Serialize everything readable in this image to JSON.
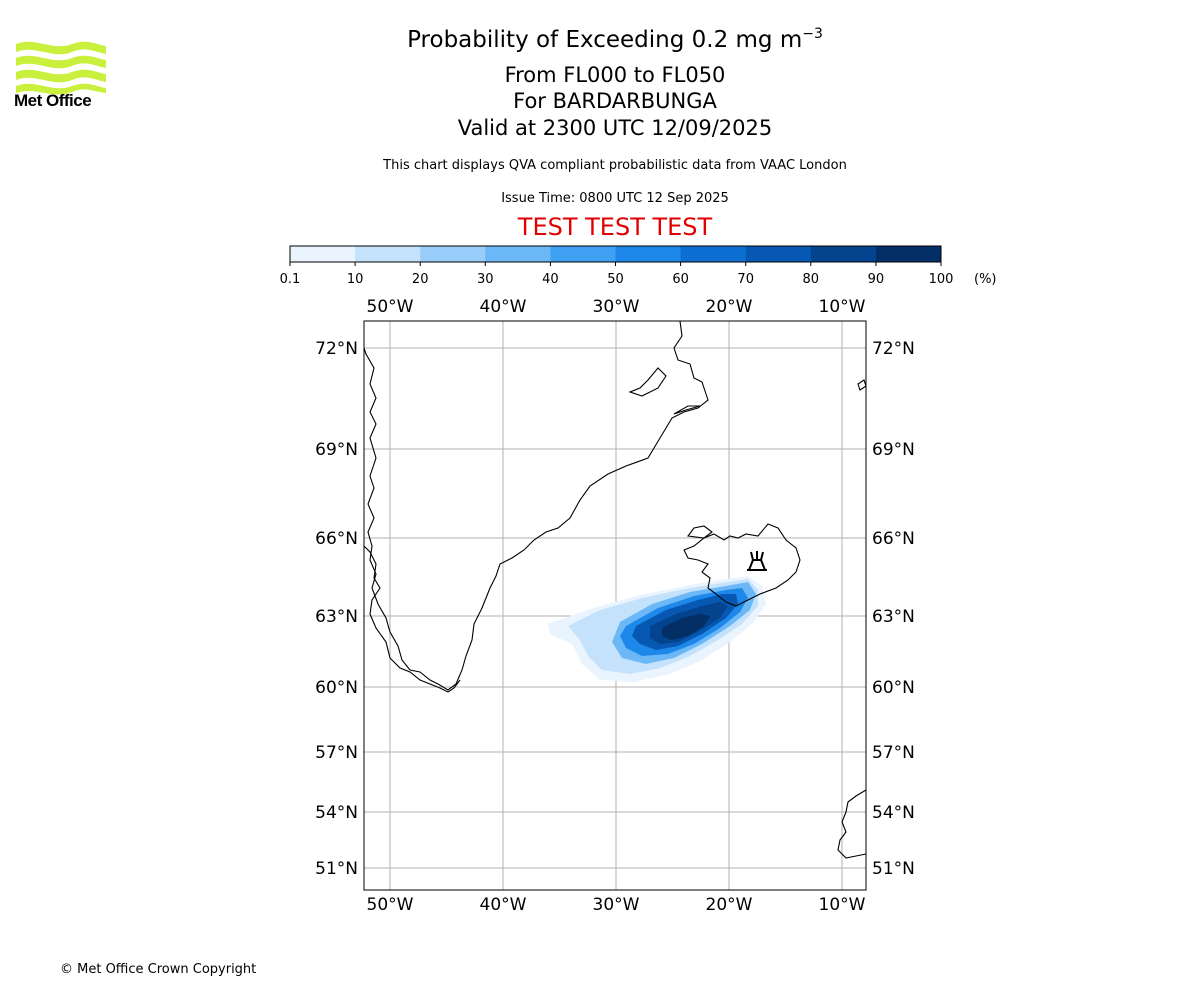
{
  "header": {
    "title_prefix": "Probability of Exceeding 0.2 mg m",
    "title_sup": "−3",
    "line2": "From FL000 to FL050",
    "line3": "For BARDARBUNGA",
    "line4": "Valid at 2300 UTC 12/09/2025",
    "note": "This chart displays QVA compliant probabilistic data from VAAC London",
    "issue_time": "Issue Time: 0800 UTC 12 Sep 2025",
    "banner": "TEST TEST TEST",
    "banner_color": "#e00000"
  },
  "logo": {
    "text": "Met Office",
    "icon": "met-office-waves-logo",
    "color": "#c8f03c"
  },
  "footer": {
    "copyright": "© Met Office Crown Copyright"
  },
  "colorbar": {
    "ticks": [
      "0.1",
      "10",
      "20",
      "30",
      "40",
      "50",
      "60",
      "70",
      "80",
      "90",
      "100"
    ],
    "unit": "(%)",
    "colors": [
      "#eaf4fe",
      "#c5e2fc",
      "#99cdf9",
      "#6cb8f6",
      "#40a1f2",
      "#1e88ea",
      "#0e6fd2",
      "#0658b3",
      "#04448f",
      "#032e66"
    ]
  },
  "map": {
    "lon_labels": [
      "50°W",
      "40°W",
      "30°W",
      "20°W",
      "10°W"
    ],
    "lat_labels": [
      "72°N",
      "69°N",
      "66°N",
      "63°N",
      "60°N",
      "57°N",
      "54°N",
      "51°N"
    ],
    "volcano_icon": "volcano-icon",
    "grid": true,
    "plume_probability_max": 100
  }
}
